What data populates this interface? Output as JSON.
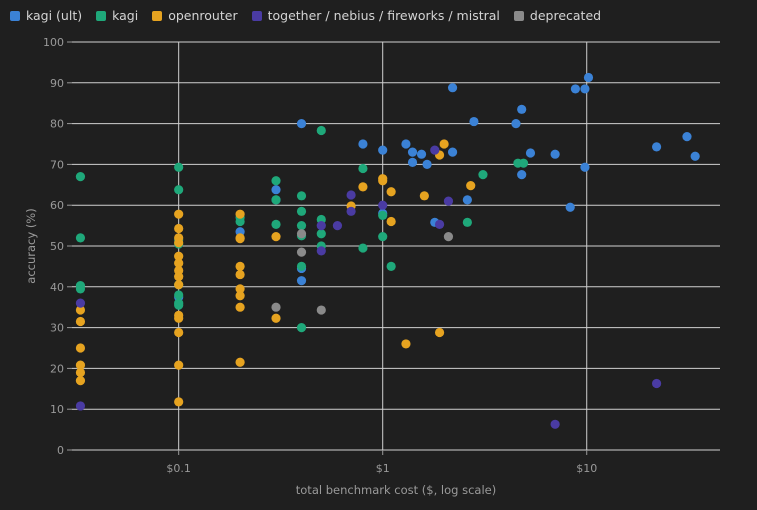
{
  "chart_data": {
    "type": "scatter",
    "xlabel": "total benchmark cost ($, log scale)",
    "ylabel": "accuracy (%)",
    "xscale": "log",
    "xlim": [
      0.03,
      45
    ],
    "ylim": [
      0,
      100
    ],
    "yticks": [
      0,
      10,
      20,
      30,
      40,
      50,
      60,
      70,
      80,
      90,
      100
    ],
    "xticks": [
      {
        "value": 0.1,
        "label": "$0.1"
      },
      {
        "value": 1,
        "label": "$1"
      },
      {
        "value": 10,
        "label": "$10"
      }
    ],
    "grid": true,
    "legend_position": "top-left",
    "series": [
      {
        "name": "kagi (ult)",
        "color": "#3b82d6",
        "points": [
          [
            0.1,
            37.5
          ],
          [
            0.2,
            53.5
          ],
          [
            0.3,
            63.8
          ],
          [
            0.3,
            61.3
          ],
          [
            0.4,
            80
          ],
          [
            0.4,
            44.5
          ],
          [
            0.4,
            41.5
          ],
          [
            0.8,
            75
          ],
          [
            1,
            73.5
          ],
          [
            1,
            58
          ],
          [
            1.3,
            75
          ],
          [
            1.4,
            73
          ],
          [
            1.4,
            70.5
          ],
          [
            1.55,
            72.5
          ],
          [
            1.65,
            70
          ],
          [
            1.8,
            55.8
          ],
          [
            2.2,
            88.8
          ],
          [
            2.2,
            73
          ],
          [
            2.6,
            61.3
          ],
          [
            2.8,
            80.5
          ],
          [
            4.5,
            80
          ],
          [
            4.8,
            83.5
          ],
          [
            4.8,
            67.5
          ],
          [
            5.3,
            72.8
          ],
          [
            7,
            72.5
          ],
          [
            8.3,
            59.5
          ],
          [
            8.8,
            88.5
          ],
          [
            9.8,
            88.5
          ],
          [
            9.8,
            69.3
          ],
          [
            10.2,
            91.3
          ],
          [
            22,
            74.3
          ],
          [
            31,
            76.8
          ],
          [
            34,
            72
          ]
        ]
      },
      {
        "name": "kagi",
        "color": "#1fa87a",
        "points": [
          [
            0.033,
            67
          ],
          [
            0.033,
            52
          ],
          [
            0.033,
            40.3
          ],
          [
            0.033,
            39.5
          ],
          [
            0.1,
            69.3
          ],
          [
            0.1,
            63.8
          ],
          [
            0.1,
            51.5
          ],
          [
            0.1,
            50.5
          ],
          [
            0.1,
            40.5
          ],
          [
            0.1,
            38
          ],
          [
            0.1,
            36
          ],
          [
            0.1,
            35.5
          ],
          [
            0.2,
            57
          ],
          [
            0.2,
            56
          ],
          [
            0.3,
            66
          ],
          [
            0.3,
            61.3
          ],
          [
            0.3,
            55.3
          ],
          [
            0.4,
            62.3
          ],
          [
            0.4,
            58.5
          ],
          [
            0.4,
            55
          ],
          [
            0.4,
            52.5
          ],
          [
            0.4,
            45
          ],
          [
            0.4,
            30
          ],
          [
            0.5,
            78.3
          ],
          [
            0.5,
            56.5
          ],
          [
            0.5,
            53
          ],
          [
            0.5,
            50
          ],
          [
            0.8,
            69
          ],
          [
            0.8,
            49.5
          ],
          [
            1,
            52.3
          ],
          [
            1,
            57.5
          ],
          [
            1.1,
            45
          ],
          [
            2.6,
            55.8
          ],
          [
            3.1,
            67.5
          ],
          [
            4.6,
            70.3
          ],
          [
            4.9,
            70.3
          ]
        ]
      },
      {
        "name": "openrouter",
        "color": "#e6a320",
        "points": [
          [
            0.033,
            34.3
          ],
          [
            0.033,
            31.5
          ],
          [
            0.033,
            25
          ],
          [
            0.033,
            20.8
          ],
          [
            0.033,
            19
          ],
          [
            0.033,
            17
          ],
          [
            0.1,
            57.8
          ],
          [
            0.1,
            54.3
          ],
          [
            0.1,
            52
          ],
          [
            0.1,
            50.8
          ],
          [
            0.1,
            47.5
          ],
          [
            0.1,
            45.8
          ],
          [
            0.1,
            44
          ],
          [
            0.1,
            42.5
          ],
          [
            0.1,
            40.5
          ],
          [
            0.1,
            33
          ],
          [
            0.1,
            32.3
          ],
          [
            0.1,
            28.8
          ],
          [
            0.1,
            20.8
          ],
          [
            0.1,
            11.8
          ],
          [
            0.2,
            57.8
          ],
          [
            0.2,
            52
          ],
          [
            0.2,
            51.8
          ],
          [
            0.2,
            45
          ],
          [
            0.2,
            43
          ],
          [
            0.2,
            39.5
          ],
          [
            0.2,
            37.8
          ],
          [
            0.2,
            35
          ],
          [
            0.2,
            21.5
          ],
          [
            0.3,
            52.3
          ],
          [
            0.3,
            32.3
          ],
          [
            0.7,
            59.8
          ],
          [
            0.8,
            64.5
          ],
          [
            1,
            66.5
          ],
          [
            1,
            66
          ],
          [
            1.1,
            63.3
          ],
          [
            1.1,
            56
          ],
          [
            1.3,
            26
          ],
          [
            1.6,
            62.3
          ],
          [
            1.9,
            72.3
          ],
          [
            1.9,
            28.8
          ],
          [
            2,
            75
          ],
          [
            2.7,
            64.8
          ]
        ]
      },
      {
        "name": "together / nebius / fireworks / mistral",
        "color": "#4a3ba3",
        "points": [
          [
            0.033,
            36
          ],
          [
            0.033,
            10.8
          ],
          [
            0.5,
            55
          ],
          [
            0.5,
            48.8
          ],
          [
            0.6,
            55
          ],
          [
            0.7,
            62.5
          ],
          [
            0.7,
            58.5
          ],
          [
            1,
            60
          ],
          [
            1.8,
            73.5
          ],
          [
            1.9,
            55.3
          ],
          [
            2.1,
            61
          ],
          [
            7,
            6.3
          ],
          [
            22,
            16.3
          ]
        ]
      },
      {
        "name": "deprecated",
        "color": "#8a8a8a",
        "points": [
          [
            0.3,
            35
          ],
          [
            0.4,
            53
          ],
          [
            0.4,
            48.5
          ],
          [
            0.5,
            34.3
          ],
          [
            2.1,
            52.3
          ]
        ]
      }
    ]
  }
}
